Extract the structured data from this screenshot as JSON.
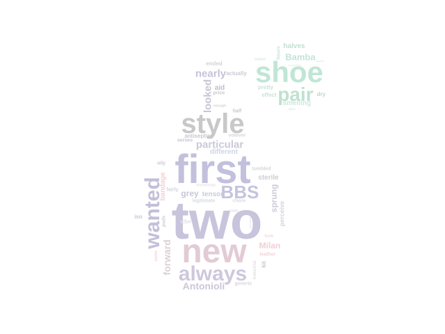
{
  "word_cloud": {
    "words": [
      {
        "text": "two",
        "color": "#c8c4dc"
      },
      {
        "text": "first",
        "color": "#c2c0dc"
      },
      {
        "text": "new",
        "color": "#e2cbd5"
      },
      {
        "text": "style",
        "color": "#c8c8c8"
      },
      {
        "text": "wanted",
        "color": "#c4bfd9"
      },
      {
        "text": "always",
        "color": "#cdc8dc"
      },
      {
        "text": "BBS",
        "color": "#c3c5df"
      },
      {
        "text": "shoe",
        "color": "#bfe6d6"
      },
      {
        "text": "pair",
        "color": "#bfe2d0"
      },
      {
        "text": "particular",
        "color": "#c9c9d9"
      },
      {
        "text": "Antonioli",
        "color": "#cdc6d6"
      },
      {
        "text": "nearly",
        "color": "#c4c3d8"
      },
      {
        "text": "looked",
        "color": "#c7c7d4"
      },
      {
        "text": "forward",
        "color": "#dccfd2"
      },
      {
        "text": "Bamba",
        "color": "#c2e4d8"
      },
      {
        "text": "Milan",
        "color": "#f0cfd6"
      },
      {
        "text": "sprung",
        "color": "#cfc9da"
      },
      {
        "text": "grey",
        "color": "#c6c7d6"
      },
      {
        "text": "halves",
        "color": "#c2dfd2"
      },
      {
        "text": "smelling",
        "color": "#cbe9e0"
      },
      {
        "text": "tensor",
        "color": "#c9ccdb"
      },
      {
        "text": "different",
        "color": "#ced4e6"
      },
      {
        "text": "aid",
        "color": "#bcbcd2"
      },
      {
        "text": "bandage",
        "color": "#f0d0d4"
      },
      {
        "text": "sterile",
        "color": "#cdcdd6"
      },
      {
        "text": "perceive",
        "color": "#d4d4e0"
      },
      {
        "text": "ended",
        "color": "#d2d2d2"
      },
      {
        "text": "actually",
        "color": "#cacad4"
      },
      {
        "text": "pretty",
        "color": "#c9e3d9"
      },
      {
        "text": "hours",
        "color": "#c9e3d9"
      },
      {
        "text": "effect",
        "color": "#c9e3d9"
      },
      {
        "text": "dry",
        "color": "#c3d2d4"
      },
      {
        "text": "price",
        "color": "#c9c9d2"
      },
      {
        "text": "half",
        "color": "#c7c7d0"
      },
      {
        "text": "antiseptic",
        "color": "#c6c6d4"
      },
      {
        "text": "volover",
        "color": "#d6d6d6"
      },
      {
        "text": "serves",
        "color": "#c5c5d1"
      },
      {
        "text": "oily",
        "color": "#c8c8d3"
      },
      {
        "text": "tumbled",
        "color": "#d6d6dc"
      },
      {
        "text": "fairly",
        "color": "#d3d3dc"
      },
      {
        "text": "legitimate",
        "color": "#d6dae4"
      },
      {
        "text": "chore",
        "color": "#d6dae4"
      },
      {
        "text": "pads",
        "color": "#cfcfd8"
      },
      {
        "text": "iso",
        "color": "#c6c6d6"
      },
      {
        "text": "vibe",
        "color": "#e2e2e8"
      },
      {
        "text": "kit",
        "color": "#c7c7d2"
      },
      {
        "text": "funk",
        "color": "#eedbe1"
      },
      {
        "text": "leather",
        "color": "#f3d3d9"
      },
      {
        "text": "industrial",
        "color": "#e1e1e6"
      },
      {
        "text": "generic",
        "color": "#d7d7dd"
      },
      {
        "text": "some",
        "color": "#f3d5dc"
      },
      {
        "text": "unique",
        "color": "#d6e8e1"
      },
      {
        "text": "enough",
        "color": "#d4d4d4"
      },
      {
        "text": "also",
        "color": "#d9ece5"
      },
      {
        "text": "tenacious",
        "color": "#dcefe8"
      },
      {
        "text": "sports",
        "color": "#dcefe8"
      },
      {
        "text": "shoestrings",
        "color": "#e4e4ea"
      },
      {
        "text": "guidance",
        "color": "#e7e7ec"
      },
      {
        "text": "clean",
        "color": "#dedee8"
      }
    ]
  }
}
